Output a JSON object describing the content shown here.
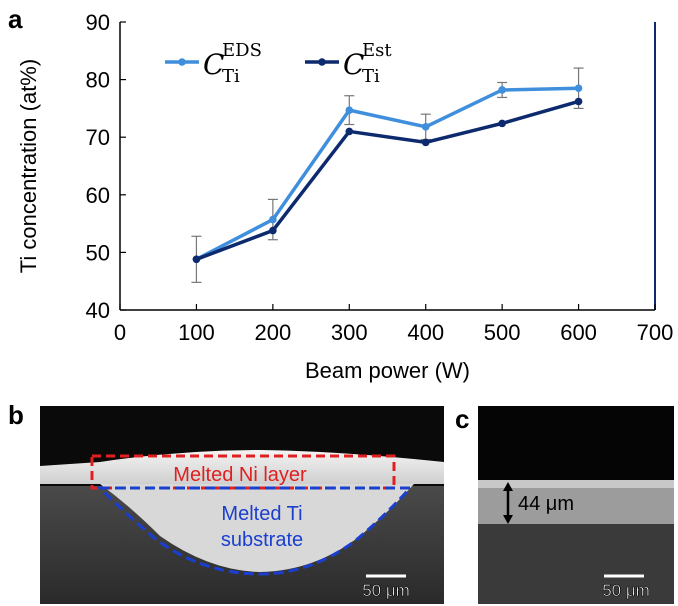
{
  "panels": {
    "a": "a",
    "b": "b",
    "c": "c"
  },
  "chart_data": {
    "type": "line",
    "xlabel": "Beam power (W)",
    "ylabel": "Ti concentration (at%)",
    "xlim": [
      0,
      700
    ],
    "ylim": [
      40,
      90
    ],
    "x_ticks": [
      0,
      100,
      200,
      300,
      400,
      500,
      600,
      700
    ],
    "y_ticks": [
      40,
      50,
      60,
      70,
      80,
      90
    ],
    "grid": false,
    "legend_placement": "top-left",
    "x": [
      100,
      200,
      300,
      400,
      500,
      600
    ],
    "series": [
      {
        "name": "C_Ti^EDS",
        "label_main": "C",
        "label_sub": "Ti",
        "label_sup": "EDS",
        "color": "#3f8fdc",
        "values": [
          48.8,
          55.7,
          74.7,
          71.8,
          78.2,
          78.5
        ],
        "error": [
          4.0,
          3.5,
          2.5,
          2.2,
          1.3,
          3.5
        ]
      },
      {
        "name": "C_Ti^Est",
        "label_main": "C",
        "label_sub": "Ti",
        "label_sup": "Est",
        "color": "#0d2a6e",
        "values": [
          48.8,
          53.8,
          71.0,
          69.1,
          72.4,
          76.2
        ],
        "error": null
      }
    ]
  },
  "micrograph_b": {
    "label_red": "Melted Ni layer",
    "label_blue_1": "Melted Ti",
    "label_blue_2": "substrate",
    "scale": "50 μm",
    "red_color": "#e02020",
    "blue_color": "#1a3fd0"
  },
  "micrograph_c": {
    "thickness": "44 μm",
    "scale": "50 μm"
  }
}
